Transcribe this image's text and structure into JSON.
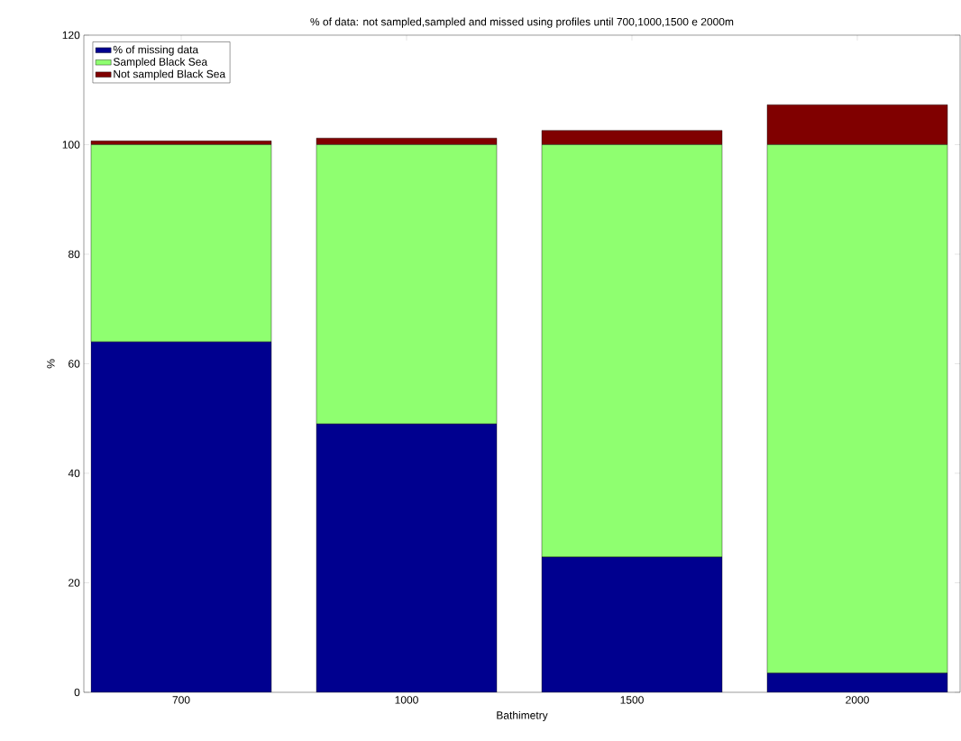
{
  "chart_data": {
    "type": "bar",
    "stacked": true,
    "title": "% of data: not sampled,sampled and missed using profiles until 700,1000,1500 e 2000m",
    "xlabel": "Bathimetry",
    "ylabel": "%",
    "categories": [
      "700",
      "1000",
      "1500",
      "2000"
    ],
    "series": [
      {
        "name": "% of missing data",
        "color": "#00008f",
        "values": [
          64,
          49,
          24.7,
          3.5
        ]
      },
      {
        "name": "Sampled Black Sea",
        "color": "#8fff70",
        "values": [
          36,
          51,
          75.3,
          96.5
        ]
      },
      {
        "name": "Not sampled Black Sea",
        "color": "#800000",
        "values": [
          0.7,
          1.2,
          2.6,
          7.3
        ]
      }
    ],
    "ylim": [
      0,
      120
    ],
    "yticks": [
      0,
      20,
      40,
      60,
      80,
      100,
      120
    ],
    "legend": "top left",
    "grid": false
  }
}
